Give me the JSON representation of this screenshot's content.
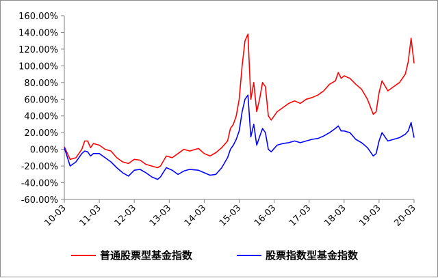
{
  "chart_data": {
    "type": "line",
    "title": "",
    "xlabel": "",
    "ylabel": "",
    "ylim": [
      -0.6,
      1.6
    ],
    "y_ticks": [
      "160.00%",
      "140.00%",
      "120.00%",
      "100.00%",
      "80.00%",
      "60.00%",
      "40.00%",
      "20.00%",
      "0.00%",
      "-20.00%",
      "-40.00%",
      "-60.00%"
    ],
    "x_ticks": [
      "10-03",
      "11-03",
      "12-03",
      "13-03",
      "14-03",
      "15-03",
      "16-03",
      "17-03",
      "18-03",
      "19-03",
      "20-03"
    ],
    "x_range": [
      "10-03",
      "20-03"
    ],
    "grid": false,
    "legend_position": "bottom",
    "series": [
      {
        "name": "普通股票型基金指数",
        "color": "#ff0000",
        "points": [
          [
            "10-03",
            0.03
          ],
          [
            "10-05",
            -0.12
          ],
          [
            "10-07",
            -0.1
          ],
          [
            "10-09",
            0.0
          ],
          [
            "10-10",
            0.1
          ],
          [
            "10-11",
            0.1
          ],
          [
            "10-12",
            0.02
          ],
          [
            "11-01",
            0.07
          ],
          [
            "11-03",
            0.05
          ],
          [
            "11-05",
            0.0
          ],
          [
            "11-07",
            -0.02
          ],
          [
            "11-09",
            -0.1
          ],
          [
            "11-11",
            -0.15
          ],
          [
            "12-01",
            -0.17
          ],
          [
            "12-03",
            -0.12
          ],
          [
            "12-05",
            -0.13
          ],
          [
            "12-07",
            -0.18
          ],
          [
            "12-09",
            -0.2
          ],
          [
            "12-11",
            -0.22
          ],
          [
            "12-12",
            -0.2
          ],
          [
            "13-02",
            -0.08
          ],
          [
            "13-04",
            -0.1
          ],
          [
            "13-06",
            -0.05
          ],
          [
            "13-08",
            0.0
          ],
          [
            "13-10",
            -0.02
          ],
          [
            "14-01",
            0.01
          ],
          [
            "14-03",
            -0.05
          ],
          [
            "14-05",
            -0.08
          ],
          [
            "14-07",
            -0.04
          ],
          [
            "14-09",
            0.02
          ],
          [
            "14-11",
            0.1
          ],
          [
            "14-12",
            0.25
          ],
          [
            "15-01",
            0.3
          ],
          [
            "15-02",
            0.4
          ],
          [
            "15-03",
            0.6
          ],
          [
            "15-04",
            1.0
          ],
          [
            "15-05",
            1.3
          ],
          [
            "15-06",
            1.38
          ],
          [
            "15-07",
            0.6
          ],
          [
            "15-08",
            0.8
          ],
          [
            "15-09",
            0.45
          ],
          [
            "15-10",
            0.6
          ],
          [
            "15-11",
            0.8
          ],
          [
            "15-12",
            0.75
          ],
          [
            "16-01",
            0.4
          ],
          [
            "16-02",
            0.35
          ],
          [
            "16-04",
            0.45
          ],
          [
            "16-06",
            0.5
          ],
          [
            "16-08",
            0.55
          ],
          [
            "16-10",
            0.58
          ],
          [
            "16-12",
            0.55
          ],
          [
            "17-02",
            0.6
          ],
          [
            "17-04",
            0.62
          ],
          [
            "17-06",
            0.65
          ],
          [
            "17-08",
            0.7
          ],
          [
            "17-10",
            0.78
          ],
          [
            "17-12",
            0.82
          ],
          [
            "18-01",
            0.92
          ],
          [
            "18-02",
            0.85
          ],
          [
            "18-03",
            0.88
          ],
          [
            "18-05",
            0.85
          ],
          [
            "18-07",
            0.78
          ],
          [
            "18-09",
            0.72
          ],
          [
            "18-11",
            0.6
          ],
          [
            "19-01",
            0.42
          ],
          [
            "19-02",
            0.45
          ],
          [
            "19-03",
            0.68
          ],
          [
            "19-04",
            0.82
          ],
          [
            "19-06",
            0.7
          ],
          [
            "19-08",
            0.75
          ],
          [
            "19-10",
            0.8
          ],
          [
            "19-12",
            0.9
          ],
          [
            "20-01",
            1.05
          ],
          [
            "20-02",
            1.33
          ],
          [
            "20-03",
            1.03
          ]
        ]
      },
      {
        "name": "股票指数型基金指数",
        "color": "#0000ff",
        "points": [
          [
            "10-03",
            0.02
          ],
          [
            "10-05",
            -0.2
          ],
          [
            "10-07",
            -0.15
          ],
          [
            "10-09",
            -0.05
          ],
          [
            "10-10",
            -0.02
          ],
          [
            "10-11",
            -0.03
          ],
          [
            "10-12",
            -0.08
          ],
          [
            "11-01",
            -0.05
          ],
          [
            "11-03",
            -0.05
          ],
          [
            "11-05",
            -0.1
          ],
          [
            "11-07",
            -0.15
          ],
          [
            "11-09",
            -0.22
          ],
          [
            "11-11",
            -0.28
          ],
          [
            "12-01",
            -0.32
          ],
          [
            "12-03",
            -0.25
          ],
          [
            "12-05",
            -0.24
          ],
          [
            "12-07",
            -0.28
          ],
          [
            "12-09",
            -0.33
          ],
          [
            "12-11",
            -0.36
          ],
          [
            "12-12",
            -0.33
          ],
          [
            "13-02",
            -0.22
          ],
          [
            "13-04",
            -0.25
          ],
          [
            "13-06",
            -0.3
          ],
          [
            "13-08",
            -0.26
          ],
          [
            "13-10",
            -0.24
          ],
          [
            "14-01",
            -0.25
          ],
          [
            "14-03",
            -0.28
          ],
          [
            "14-05",
            -0.31
          ],
          [
            "14-07",
            -0.3
          ],
          [
            "14-09",
            -0.22
          ],
          [
            "14-11",
            -0.1
          ],
          [
            "14-12",
            0.0
          ],
          [
            "15-01",
            0.05
          ],
          [
            "15-02",
            0.12
          ],
          [
            "15-03",
            0.22
          ],
          [
            "15-04",
            0.45
          ],
          [
            "15-05",
            0.6
          ],
          [
            "15-06",
            0.65
          ],
          [
            "15-07",
            0.15
          ],
          [
            "15-08",
            0.3
          ],
          [
            "15-09",
            0.05
          ],
          [
            "15-10",
            0.15
          ],
          [
            "15-11",
            0.25
          ],
          [
            "15-12",
            0.2
          ],
          [
            "16-01",
            0.0
          ],
          [
            "16-02",
            -0.03
          ],
          [
            "16-04",
            0.05
          ],
          [
            "16-06",
            0.07
          ],
          [
            "16-08",
            0.08
          ],
          [
            "16-10",
            0.1
          ],
          [
            "16-12",
            0.08
          ],
          [
            "17-02",
            0.1
          ],
          [
            "17-04",
            0.12
          ],
          [
            "17-06",
            0.13
          ],
          [
            "17-08",
            0.16
          ],
          [
            "17-10",
            0.2
          ],
          [
            "17-12",
            0.25
          ],
          [
            "18-01",
            0.28
          ],
          [
            "18-02",
            0.22
          ],
          [
            "18-03",
            0.22
          ],
          [
            "18-05",
            0.2
          ],
          [
            "18-07",
            0.12
          ],
          [
            "18-09",
            0.08
          ],
          [
            "18-11",
            0.02
          ],
          [
            "19-01",
            -0.08
          ],
          [
            "19-02",
            -0.05
          ],
          [
            "19-03",
            0.1
          ],
          [
            "19-04",
            0.2
          ],
          [
            "19-06",
            0.1
          ],
          [
            "19-08",
            0.12
          ],
          [
            "19-10",
            0.14
          ],
          [
            "19-12",
            0.18
          ],
          [
            "20-01",
            0.22
          ],
          [
            "20-02",
            0.32
          ],
          [
            "20-03",
            0.14
          ]
        ]
      }
    ]
  }
}
